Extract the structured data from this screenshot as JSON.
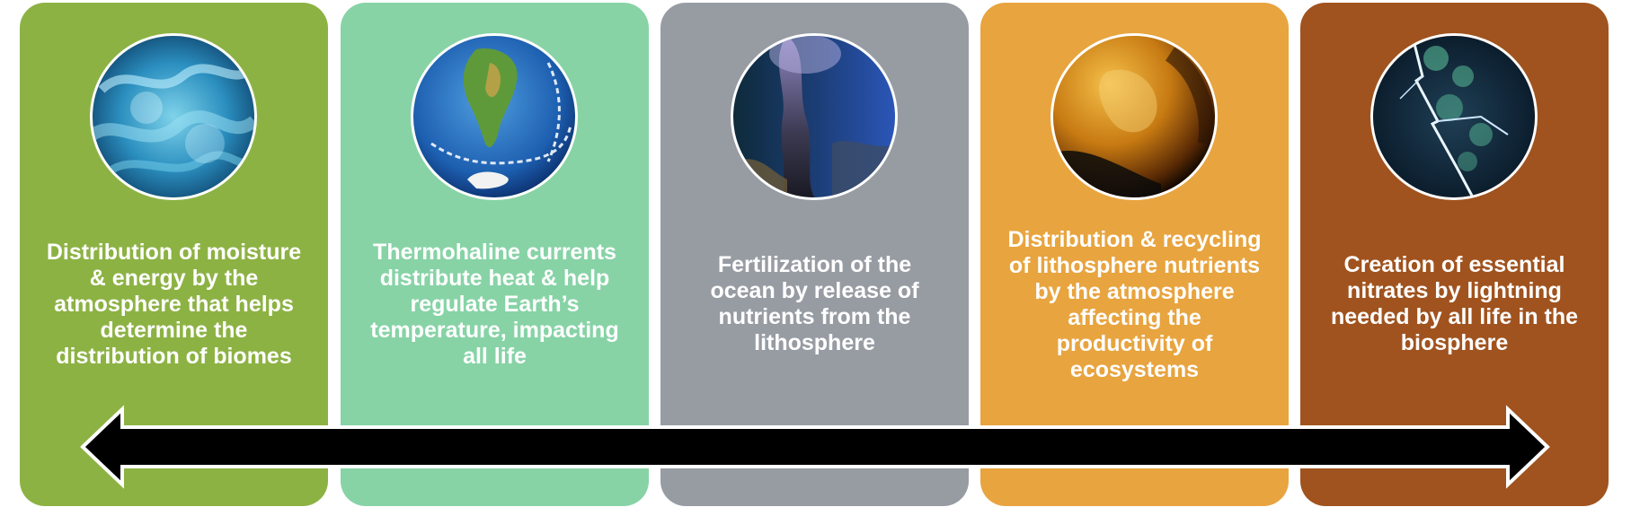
{
  "panels": [
    {
      "text": "Distribution of moisture\n& energy by the\natmosphere that helps\ndetermine the\ndistribution of biomes",
      "color": "#8db244",
      "image_icon": "atmosphere-clouds-image"
    },
    {
      "text": "Thermohaline currents\ndistribute heat & help\nregulate Earth’s\ntemperature, impacting\nall life",
      "color": "#87d3a6",
      "image_icon": "globe-ocean-currents-image"
    },
    {
      "text": "Fertilization of the\nocean by release of\nnutrients from the\nlithosphere",
      "color": "#979ca3",
      "image_icon": "hydrothermal-vent-image"
    },
    {
      "text": "Distribution & recycling\nof lithosphere nutrients\nby the atmosphere\naffecting the\nproductivity of\necosystems",
      "color": "#e8a43f",
      "image_icon": "dust-storm-image"
    },
    {
      "text": "Creation of essential\nnitrates by lightning\nneeded by all life in the\nbiosphere",
      "color": "#a0531e",
      "image_icon": "lightning-image"
    }
  ],
  "arrow": {
    "color": "#000000",
    "outline": "#ffffff",
    "direction": "double-headed"
  }
}
